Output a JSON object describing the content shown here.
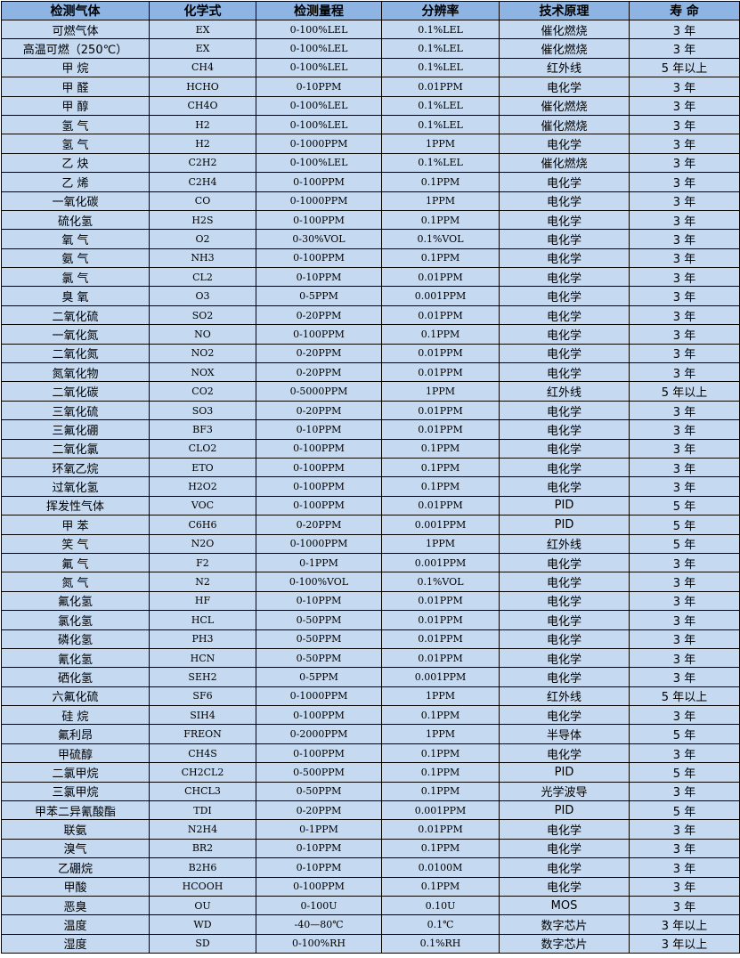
{
  "headers": [
    "检测气体",
    "化学式",
    "检测量程",
    "分辨率",
    "技术原理",
    "寿 命"
  ],
  "rows": [
    [
      "可燃气体",
      "EX",
      "0-100%LEL",
      "0.1%LEL",
      "催化燃烧",
      "3 年"
    ],
    [
      "高温可燃（250℃）",
      "EX",
      "0-100%LEL",
      "0.1%LEL",
      "催化燃烧",
      "3 年"
    ],
    [
      "甲 烷",
      "CH4",
      "0-100%LEL",
      "0.1%LEL",
      "红外线",
      "5 年以上"
    ],
    [
      "甲 醛",
      "HCHO",
      "0-10PPM",
      "0.01PPM",
      "电化学",
      "3 年"
    ],
    [
      "甲 醇",
      "CH4O",
      "0-100%LEL",
      "0.1%LEL",
      "催化燃烧",
      "3 年"
    ],
    [
      "氢 气",
      "H2",
      "0-100%LEL",
      "0.1%LEL",
      "催化燃烧",
      "3 年"
    ],
    [
      "氢 气",
      "H2",
      "0-1000PPM",
      "1PPM",
      "电化学",
      "3 年"
    ],
    [
      "乙 炔",
      "C2H2",
      "0-100%LEL",
      "0.1%LEL",
      "催化燃烧",
      "3 年"
    ],
    [
      "乙 烯",
      "C2H4",
      "0-100PPM",
      "0.1PPM",
      "电化学",
      "3 年"
    ],
    [
      "一氧化碳",
      "CO",
      "0-1000PPM",
      "1PPM",
      "电化学",
      "3 年"
    ],
    [
      "硫化氢",
      "H2S",
      "0-100PPM",
      "0.1PPM",
      "电化学",
      "3 年"
    ],
    [
      "氧 气",
      "O2",
      "0-30%VOL",
      "0.1%VOL",
      "电化学",
      "3 年"
    ],
    [
      "氨 气",
      "NH3",
      "0-100PPM",
      "0.1PPM",
      "电化学",
      "3 年"
    ],
    [
      "氯 气",
      "CL2",
      "0-10PPM",
      "0.01PPM",
      "电化学",
      "3 年"
    ],
    [
      "臭 氧",
      "O3",
      "0-5PPM",
      "0.001PPM",
      "电化学",
      "3 年"
    ],
    [
      "二氧化硫",
      "SO2",
      "0-20PPM",
      "0.01PPM",
      "电化学",
      "3 年"
    ],
    [
      "一氧化氮",
      "NO",
      "0-100PPM",
      "0.1PPM",
      "电化学",
      "3 年"
    ],
    [
      "二氧化氮",
      "NO2",
      "0-20PPM",
      "0.01PPM",
      "电化学",
      "3 年"
    ],
    [
      "氮氧化物",
      "NOX",
      "0-20PPM",
      "0.01PPM",
      "电化学",
      "3 年"
    ],
    [
      "二氧化碳",
      "CO2",
      "0-5000PPM",
      "1PPM",
      "红外线",
      "5 年以上"
    ],
    [
      "三氧化硫",
      "SO3",
      "0-20PPM",
      "0.01PPM",
      "电化学",
      "3 年"
    ],
    [
      "三氟化硼",
      "BF3",
      "0-10PPM",
      "0.01PPM",
      "电化学",
      "3 年"
    ],
    [
      "二氧化氯",
      "CLO2",
      "0-100PPM",
      "0.1PPM",
      "电化学",
      "3 年"
    ],
    [
      "环氧乙烷",
      "ETO",
      "0-100PPM",
      "0.1PPM",
      "电化学",
      "3 年"
    ],
    [
      "过氧化氢",
      "H2O2",
      "0-100PPM",
      "0.1PPM",
      "电化学",
      "3 年"
    ],
    [
      "挥发性气体",
      "VOC",
      "0-100PPM",
      "0.01PPM",
      "PID",
      "5 年"
    ],
    [
      "甲 苯",
      "C6H6",
      "0-20PPM",
      "0.001PPM",
      "PID",
      "5 年"
    ],
    [
      "笑 气",
      "N2O",
      "0-1000PPM",
      "1PPM",
      "红外线",
      "5 年"
    ],
    [
      "氟 气",
      "F2",
      "0-1PPM",
      "0.001PPM",
      "电化学",
      "3 年"
    ],
    [
      "氮 气",
      "N2",
      "0-100%VOL",
      "0.1%VOL",
      "电化学",
      "3 年"
    ],
    [
      "氟化氢",
      "HF",
      "0-10PPM",
      "0.01PPM",
      "电化学",
      "3 年"
    ],
    [
      "氯化氢",
      "HCL",
      "0-50PPM",
      "0.01PPM",
      "电化学",
      "3 年"
    ],
    [
      "磷化氢",
      "PH3",
      "0-50PPM",
      "0.01PPM",
      "电化学",
      "3 年"
    ],
    [
      "氰化氢",
      "HCN",
      "0-50PPM",
      "0.01PPM",
      "电化学",
      "3 年"
    ],
    [
      "硒化氢",
      "SEH2",
      "0-5PPM",
      "0.001PPM",
      "电化学",
      "3 年"
    ],
    [
      "六氟化硫",
      "SF6",
      "0-1000PPM",
      "1PPM",
      "红外线",
      "5 年以上"
    ],
    [
      "硅 烷",
      "SIH4",
      "0-100PPM",
      "0.1PPM",
      "电化学",
      "3 年"
    ],
    [
      "氟利昂",
      "FREON",
      "0-2000PPM",
      "1PPM",
      "半导体",
      "5 年"
    ],
    [
      "甲硫醇",
      "CH4S",
      "0-100PPM",
      "0.1PPM",
      "电化学",
      "3 年"
    ],
    [
      "二氯甲烷",
      "CH2CL2",
      "0-500PPM",
      "0.1PPM",
      "PID",
      "5 年"
    ],
    [
      "三氯甲烷",
      "CHCL3",
      "0-50PPM",
      "0.1PPM",
      "光学波导",
      "3 年"
    ],
    [
      "甲苯二异氰酸酯",
      "TDI",
      "0-20PPM",
      "0.001PPM",
      "PID",
      "5 年"
    ],
    [
      "联氨",
      "N2H4",
      "0-1PPM",
      "0.01PPM",
      "电化学",
      "3 年"
    ],
    [
      "溴气",
      "BR2",
      "0-10PPM",
      "0.1PPM",
      "电化学",
      "3 年"
    ],
    [
      "乙硼烷",
      "B2H6",
      "0-10PPM",
      "0.0100M",
      "电化学",
      "3 年"
    ],
    [
      "甲酸",
      "HCOOH",
      "0-100PPM",
      "0.1PPM",
      "电化学",
      "3 年"
    ],
    [
      "恶臭",
      "OU",
      "0-100U",
      "0.10U",
      "MOS",
      "3 年"
    ],
    [
      "温度",
      "WD",
      "-40—80℃",
      "0.1℃",
      "数字芯片",
      "3 年以上"
    ],
    [
      "湿度",
      "SD",
      "0-100%RH",
      "0.1%RH",
      "数字芯片",
      "3 年以上"
    ]
  ],
  "colors": {
    "header_bg": "#8db4e2",
    "cell_bg": "#c5d9f1",
    "border": "#000000"
  }
}
